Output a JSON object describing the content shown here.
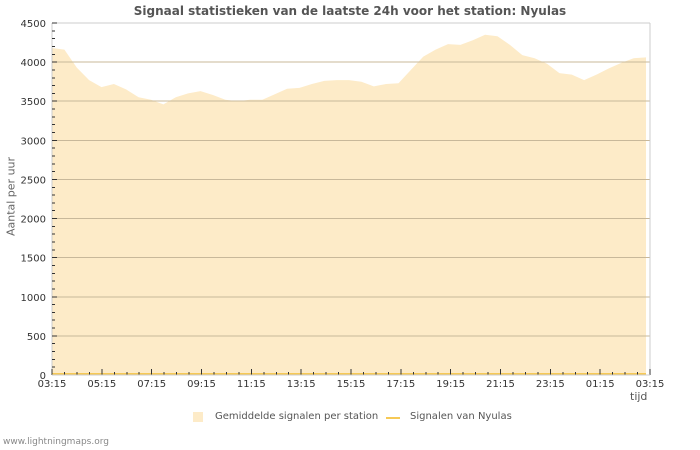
{
  "title": "Signaal statistieken van de laatste 24h voor het station: Nyulas",
  "footer": "www.lightningmaps.org",
  "colors": {
    "area": "#fdebc8",
    "line": "#f6c956",
    "grid": "#c8b89a",
    "frame": "#cccccc"
  },
  "chart_data": {
    "type": "area",
    "title": "Signaal statistieken van de laatste 24h voor het station: Nyulas",
    "xlabel": "tijd",
    "ylabel": "Aantal per uur",
    "ylim": [
      0,
      4500
    ],
    "yticks": [
      0,
      500,
      1000,
      1500,
      2000,
      2500,
      3000,
      3500,
      4000,
      4500
    ],
    "xtick_labels": [
      "03:15",
      "05:15",
      "07:15",
      "09:15",
      "11:15",
      "13:15",
      "15:15",
      "17:15",
      "19:15",
      "21:15",
      "23:15",
      "01:15",
      "03:15"
    ],
    "grid": true,
    "legend_position": "bottom",
    "legend": [
      "Gemiddelde signalen per station",
      "Signalen van Nyulas"
    ],
    "x": [
      "03:15",
      "03:45",
      "04:15",
      "04:45",
      "05:15",
      "05:45",
      "06:15",
      "06:45",
      "07:15",
      "07:45",
      "08:15",
      "08:45",
      "09:15",
      "09:45",
      "10:15",
      "10:45",
      "11:15",
      "11:45",
      "12:15",
      "12:45",
      "13:15",
      "13:45",
      "14:15",
      "14:45",
      "15:15",
      "15:45",
      "16:15",
      "16:45",
      "17:15",
      "17:45",
      "18:15",
      "18:45",
      "19:15",
      "19:45",
      "20:15",
      "20:45",
      "21:15",
      "21:45",
      "22:15",
      "22:45",
      "23:15",
      "23:45",
      "00:15",
      "00:45",
      "01:15",
      "01:45",
      "02:15",
      "02:45",
      "03:15"
    ],
    "series": [
      {
        "name": "Gemiddelde signalen per station",
        "values": [
          4180,
          4160,
          3930,
          3770,
          3680,
          3720,
          3650,
          3550,
          3520,
          3460,
          3550,
          3600,
          3630,
          3580,
          3520,
          3500,
          3520,
          3520,
          3590,
          3660,
          3670,
          3720,
          3760,
          3770,
          3770,
          3750,
          3690,
          3720,
          3730,
          3900,
          4070,
          4160,
          4230,
          4220,
          4280,
          4350,
          4330,
          4220,
          4090,
          4050,
          3980,
          3860,
          3840,
          3770,
          3840,
          3920,
          3990,
          4050,
          4060
        ]
      },
      {
        "name": "Signalen van Nyulas",
        "values": [
          0,
          0,
          0,
          0,
          0,
          0,
          0,
          0,
          0,
          0,
          0,
          0,
          0,
          0,
          0,
          0,
          0,
          0,
          0,
          0,
          0,
          0,
          0,
          0,
          0,
          0,
          0,
          0,
          0,
          0,
          0,
          0,
          0,
          0,
          0,
          0,
          0,
          0,
          0,
          0,
          0,
          0,
          0,
          0,
          0,
          0,
          0,
          0,
          0
        ]
      }
    ]
  }
}
